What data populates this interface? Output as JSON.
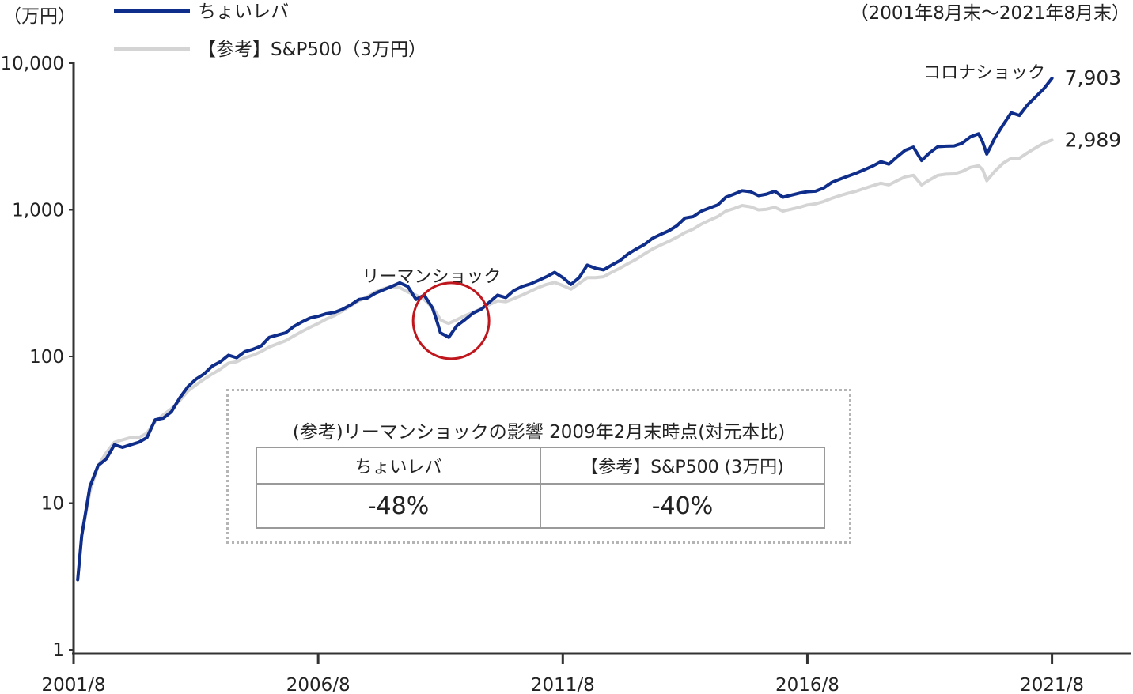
{
  "chart_data": {
    "type": "line",
    "y_unit_label": "（万円）",
    "period_note": "（2001年8月末～2021年8月末）",
    "y_scale": "log",
    "ylim": [
      1,
      10000
    ],
    "y_ticks": [
      {
        "value": 1,
        "label": "1"
      },
      {
        "value": 10,
        "label": "10"
      },
      {
        "value": 100,
        "label": "100"
      },
      {
        "value": 1000,
        "label": "1,000"
      },
      {
        "value": 10000,
        "label": "10,000"
      }
    ],
    "x_ticks": [
      {
        "value": 2001.583,
        "label": "2001/8"
      },
      {
        "value": 2006.583,
        "label": "2006/8"
      },
      {
        "value": 2011.583,
        "label": "2011/8"
      },
      {
        "value": 2016.583,
        "label": "2016/8"
      },
      {
        "value": 2021.583,
        "label": "2021/8"
      }
    ],
    "legend_placement": "top-left",
    "series": [
      {
        "name": "ちょいレバ",
        "color": "#0f2d8a",
        "end_label": "7,903",
        "points": [
          [
            2001.667,
            3
          ],
          [
            2001.75,
            6
          ],
          [
            2001.917,
            13
          ],
          [
            2002.083,
            18
          ],
          [
            2002.25,
            20
          ],
          [
            2002.417,
            25
          ],
          [
            2002.583,
            24
          ],
          [
            2002.75,
            25
          ],
          [
            2002.917,
            26
          ],
          [
            2003.083,
            28
          ],
          [
            2003.25,
            37
          ],
          [
            2003.417,
            38
          ],
          [
            2003.583,
            42
          ],
          [
            2003.75,
            52
          ],
          [
            2003.917,
            62
          ],
          [
            2004.083,
            70
          ],
          [
            2004.25,
            76
          ],
          [
            2004.417,
            86
          ],
          [
            2004.583,
            92
          ],
          [
            2004.75,
            102
          ],
          [
            2004.917,
            98
          ],
          [
            2005.083,
            108
          ],
          [
            2005.25,
            112
          ],
          [
            2005.417,
            118
          ],
          [
            2005.583,
            135
          ],
          [
            2005.75,
            140
          ],
          [
            2005.917,
            145
          ],
          [
            2006.083,
            160
          ],
          [
            2006.25,
            172
          ],
          [
            2006.417,
            183
          ],
          [
            2006.583,
            188
          ],
          [
            2006.75,
            196
          ],
          [
            2006.917,
            200
          ],
          [
            2007.083,
            210
          ],
          [
            2007.25,
            225
          ],
          [
            2007.417,
            245
          ],
          [
            2007.583,
            250
          ],
          [
            2007.75,
            270
          ],
          [
            2007.917,
            285
          ],
          [
            2008.083,
            300
          ],
          [
            2008.25,
            318
          ],
          [
            2008.417,
            300
          ],
          [
            2008.583,
            245
          ],
          [
            2008.75,
            262
          ],
          [
            2008.917,
            215
          ],
          [
            2009.0,
            178
          ],
          [
            2009.083,
            145
          ],
          [
            2009.167,
            140
          ],
          [
            2009.25,
            135
          ],
          [
            2009.417,
            162
          ],
          [
            2009.583,
            178
          ],
          [
            2009.75,
            198
          ],
          [
            2009.917,
            210
          ],
          [
            2010.083,
            235
          ],
          [
            2010.25,
            262
          ],
          [
            2010.417,
            252
          ],
          [
            2010.583,
            282
          ],
          [
            2010.75,
            300
          ],
          [
            2010.917,
            312
          ],
          [
            2011.083,
            330
          ],
          [
            2011.25,
            350
          ],
          [
            2011.417,
            375
          ],
          [
            2011.583,
            345
          ],
          [
            2011.75,
            310
          ],
          [
            2011.917,
            345
          ],
          [
            2012.083,
            420
          ],
          [
            2012.25,
            400
          ],
          [
            2012.417,
            390
          ],
          [
            2012.583,
            420
          ],
          [
            2012.75,
            450
          ],
          [
            2012.917,
            500
          ],
          [
            2013.083,
            540
          ],
          [
            2013.25,
            580
          ],
          [
            2013.417,
            640
          ],
          [
            2013.583,
            680
          ],
          [
            2013.75,
            720
          ],
          [
            2013.917,
            780
          ],
          [
            2014.083,
            880
          ],
          [
            2014.25,
            900
          ],
          [
            2014.417,
            980
          ],
          [
            2014.583,
            1030
          ],
          [
            2014.75,
            1080
          ],
          [
            2014.917,
            1220
          ],
          [
            2015.083,
            1280
          ],
          [
            2015.25,
            1350
          ],
          [
            2015.417,
            1330
          ],
          [
            2015.583,
            1250
          ],
          [
            2015.75,
            1280
          ],
          [
            2015.917,
            1340
          ],
          [
            2016.083,
            1220
          ],
          [
            2016.25,
            1260
          ],
          [
            2016.417,
            1300
          ],
          [
            2016.583,
            1330
          ],
          [
            2016.75,
            1340
          ],
          [
            2016.917,
            1410
          ],
          [
            2017.083,
            1540
          ],
          [
            2017.25,
            1620
          ],
          [
            2017.417,
            1700
          ],
          [
            2017.583,
            1780
          ],
          [
            2017.75,
            1880
          ],
          [
            2017.917,
            1990
          ],
          [
            2018.083,
            2130
          ],
          [
            2018.25,
            2050
          ],
          [
            2018.417,
            2300
          ],
          [
            2018.583,
            2550
          ],
          [
            2018.75,
            2680
          ],
          [
            2018.917,
            2170
          ],
          [
            2019.083,
            2450
          ],
          [
            2019.25,
            2700
          ],
          [
            2019.417,
            2720
          ],
          [
            2019.583,
            2730
          ],
          [
            2019.75,
            2850
          ],
          [
            2019.917,
            3150
          ],
          [
            2020.083,
            3300
          ],
          [
            2020.167,
            2900
          ],
          [
            2020.25,
            2400
          ],
          [
            2020.417,
            3100
          ],
          [
            2020.583,
            3800
          ],
          [
            2020.75,
            4600
          ],
          [
            2020.917,
            4400
          ],
          [
            2021.083,
            5200
          ],
          [
            2021.25,
            5900
          ],
          [
            2021.417,
            6700
          ],
          [
            2021.583,
            7903
          ]
        ]
      },
      {
        "name": "【参考】S&P500（3万円）",
        "color": "#d4d4d4",
        "end_label": "2,989",
        "points": [
          [
            2001.667,
            3
          ],
          [
            2001.75,
            6
          ],
          [
            2001.917,
            12
          ],
          [
            2002.083,
            18
          ],
          [
            2002.25,
            22
          ],
          [
            2002.417,
            26
          ],
          [
            2002.583,
            27
          ],
          [
            2002.75,
            28
          ],
          [
            2002.917,
            28
          ],
          [
            2003.083,
            30
          ],
          [
            2003.25,
            36
          ],
          [
            2003.417,
            40
          ],
          [
            2003.583,
            44
          ],
          [
            2003.75,
            50
          ],
          [
            2003.917,
            58
          ],
          [
            2004.083,
            64
          ],
          [
            2004.25,
            70
          ],
          [
            2004.417,
            76
          ],
          [
            2004.583,
            82
          ],
          [
            2004.75,
            90
          ],
          [
            2004.917,
            92
          ],
          [
            2005.083,
            98
          ],
          [
            2005.25,
            102
          ],
          [
            2005.417,
            108
          ],
          [
            2005.583,
            116
          ],
          [
            2005.75,
            122
          ],
          [
            2005.917,
            128
          ],
          [
            2006.083,
            138
          ],
          [
            2006.25,
            148
          ],
          [
            2006.417,
            158
          ],
          [
            2006.583,
            168
          ],
          [
            2006.75,
            180
          ],
          [
            2006.917,
            190
          ],
          [
            2007.083,
            205
          ],
          [
            2007.25,
            222
          ],
          [
            2007.417,
            240
          ],
          [
            2007.583,
            255
          ],
          [
            2007.75,
            275
          ],
          [
            2007.917,
            290
          ],
          [
            2008.083,
            300
          ],
          [
            2008.25,
            295
          ],
          [
            2008.417,
            275
          ],
          [
            2008.583,
            262
          ],
          [
            2008.75,
            245
          ],
          [
            2008.917,
            215
          ],
          [
            2009.0,
            198
          ],
          [
            2009.083,
            178
          ],
          [
            2009.167,
            172
          ],
          [
            2009.25,
            168
          ],
          [
            2009.417,
            178
          ],
          [
            2009.583,
            190
          ],
          [
            2009.75,
            200
          ],
          [
            2009.917,
            212
          ],
          [
            2010.083,
            226
          ],
          [
            2010.25,
            240
          ],
          [
            2010.417,
            236
          ],
          [
            2010.583,
            248
          ],
          [
            2010.75,
            262
          ],
          [
            2010.917,
            278
          ],
          [
            2011.083,
            295
          ],
          [
            2011.25,
            310
          ],
          [
            2011.417,
            320
          ],
          [
            2011.583,
            305
          ],
          [
            2011.75,
            288
          ],
          [
            2011.917,
            315
          ],
          [
            2012.083,
            345
          ],
          [
            2012.25,
            345
          ],
          [
            2012.417,
            350
          ],
          [
            2012.583,
            375
          ],
          [
            2012.75,
            400
          ],
          [
            2012.917,
            430
          ],
          [
            2013.083,
            460
          ],
          [
            2013.25,
            500
          ],
          [
            2013.417,
            540
          ],
          [
            2013.583,
            575
          ],
          [
            2013.75,
            610
          ],
          [
            2013.917,
            650
          ],
          [
            2014.083,
            700
          ],
          [
            2014.25,
            740
          ],
          [
            2014.417,
            800
          ],
          [
            2014.583,
            850
          ],
          [
            2014.75,
            900
          ],
          [
            2014.917,
            980
          ],
          [
            2015.083,
            1020
          ],
          [
            2015.25,
            1070
          ],
          [
            2015.417,
            1050
          ],
          [
            2015.583,
            1000
          ],
          [
            2015.75,
            1010
          ],
          [
            2015.917,
            1040
          ],
          [
            2016.083,
            980
          ],
          [
            2016.25,
            1010
          ],
          [
            2016.417,
            1040
          ],
          [
            2016.583,
            1080
          ],
          [
            2016.75,
            1100
          ],
          [
            2016.917,
            1140
          ],
          [
            2017.083,
            1200
          ],
          [
            2017.25,
            1250
          ],
          [
            2017.417,
            1300
          ],
          [
            2017.583,
            1340
          ],
          [
            2017.75,
            1400
          ],
          [
            2017.917,
            1460
          ],
          [
            2018.083,
            1520
          ],
          [
            2018.25,
            1480
          ],
          [
            2018.417,
            1580
          ],
          [
            2018.583,
            1680
          ],
          [
            2018.75,
            1720
          ],
          [
            2018.917,
            1480
          ],
          [
            2019.083,
            1600
          ],
          [
            2019.25,
            1720
          ],
          [
            2019.417,
            1750
          ],
          [
            2019.583,
            1760
          ],
          [
            2019.75,
            1830
          ],
          [
            2019.917,
            1950
          ],
          [
            2020.083,
            2000
          ],
          [
            2020.167,
            1880
          ],
          [
            2020.25,
            1580
          ],
          [
            2020.417,
            1840
          ],
          [
            2020.583,
            2080
          ],
          [
            2020.75,
            2250
          ],
          [
            2020.917,
            2250
          ],
          [
            2021.083,
            2450
          ],
          [
            2021.25,
            2650
          ],
          [
            2021.417,
            2850
          ],
          [
            2021.583,
            2989
          ]
        ]
      }
    ],
    "annotations": [
      {
        "text": "リーマンショック",
        "x": 2008.9,
        "y": 355
      },
      {
        "text": "コロナショック",
        "x": 2020.2,
        "y": 8700
      }
    ],
    "highlight": {
      "type": "circle",
      "x": 2009.3,
      "y": 175
    }
  },
  "info_box": {
    "title": "(参考)リーマンショックの影響 2009年2月末時点(対元本比)",
    "columns": [
      "ちょいレバ",
      "【参考】S&P500 (3万円)"
    ],
    "values": [
      "-48%",
      "-40%"
    ]
  }
}
